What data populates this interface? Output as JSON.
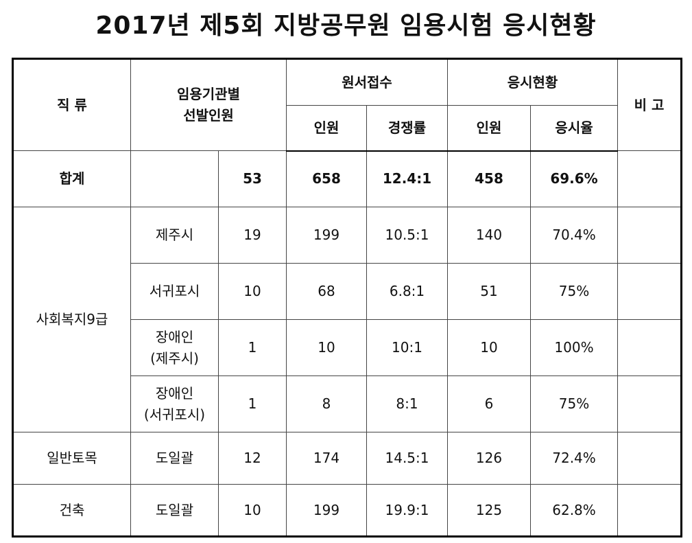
{
  "title": "2017년 제5회 지방공무원 임용시험 응시현황",
  "headers": {
    "category": "직 류",
    "selection": "임용기관별\n선발인원",
    "application": "원서접수",
    "exam": "응시현황",
    "remarks": "비 고",
    "app_count": "인원",
    "competition": "경쟁률",
    "exam_count": "인원",
    "exam_rate": "응시율"
  },
  "total": {
    "label": "합계",
    "agency": "",
    "selected": "53",
    "applicants": "658",
    "competition": "12.4:1",
    "examinees": "458",
    "rate": "69.6%"
  },
  "welfare": {
    "category": "사회복지9급",
    "rows": [
      {
        "agency": "제주시",
        "selected": "19",
        "applicants": "199",
        "competition": "10.5:1",
        "examinees": "140",
        "rate": "70.4%"
      },
      {
        "agency": "서귀포시",
        "selected": "10",
        "applicants": "68",
        "competition": "6.8:1",
        "examinees": "51",
        "rate": "75%"
      },
      {
        "agency": "장애인\n(제주시)",
        "selected": "1",
        "applicants": "10",
        "competition": "10:1",
        "examinees": "10",
        "rate": "100%"
      },
      {
        "agency": "장애인\n(서귀포시)",
        "selected": "1",
        "applicants": "8",
        "competition": "8:1",
        "examinees": "6",
        "rate": "75%"
      }
    ]
  },
  "civil": {
    "category": "일반토목",
    "agency": "도일괄",
    "selected": "12",
    "applicants": "174",
    "competition": "14.5:1",
    "examinees": "126",
    "rate": "72.4%"
  },
  "arch": {
    "category": "건축",
    "agency": "도일괄",
    "selected": "10",
    "applicants": "199",
    "competition": "19.9:1",
    "examinees": "125",
    "rate": "62.8%"
  }
}
